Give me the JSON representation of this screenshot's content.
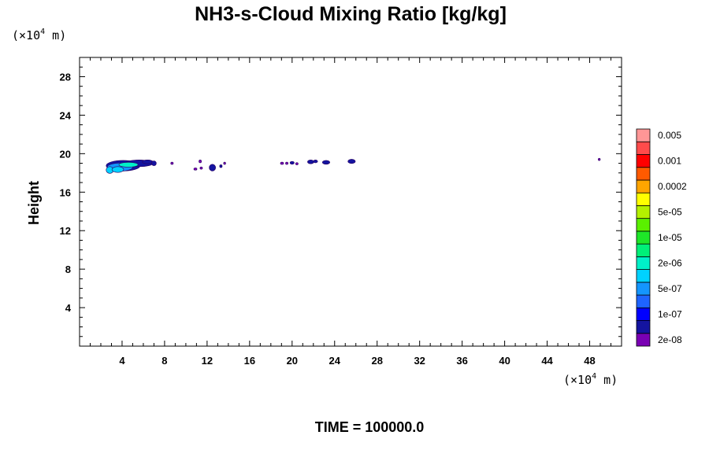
{
  "chart_data": {
    "type": "contour",
    "title": "NH3-s-Cloud Mixing Ratio [kg/kg]",
    "xlabel": "",
    "ylabel": "Height",
    "x_unit": {
      "pre": "(×10",
      "exp": "4",
      "post": " m)"
    },
    "y_unit": {
      "pre": "(×10",
      "exp": "4",
      "post": " m)"
    },
    "xlim": [
      0,
      51
    ],
    "ylim": [
      0,
      30
    ],
    "x_ticks": [
      4,
      8,
      12,
      16,
      20,
      24,
      28,
      32,
      36,
      40,
      44,
      48
    ],
    "y_ticks": [
      4,
      8,
      12,
      16,
      20,
      24,
      28
    ],
    "time_label": "TIME = 100000.0",
    "colorbar": {
      "colors": [
        "#7a00b4",
        "#1414a0",
        "#0000ff",
        "#1e64ff",
        "#1496ff",
        "#00d2ff",
        "#00f0c8",
        "#00f078",
        "#1ee628",
        "#5af000",
        "#b4f000",
        "#ffff00",
        "#ffa500",
        "#ff5a00",
        "#ff0000",
        "#ff4b4b",
        "#ff9696"
      ],
      "labels": [
        {
          "text": "2e-08",
          "boundary": 1
        },
        {
          "text": "1e-07",
          "boundary": 3
        },
        {
          "text": "5e-07",
          "boundary": 5
        },
        {
          "text": "2e-06",
          "boundary": 7
        },
        {
          "text": "1e-05",
          "boundary": 9
        },
        {
          "text": "5e-05",
          "boundary": 11
        },
        {
          "text": "0.0002",
          "boundary": 13
        },
        {
          "text": "0.001",
          "boundary": 15
        },
        {
          "text": "0.005",
          "boundary": 17
        }
      ]
    },
    "blobs": [
      {
        "cx": 4.1,
        "cy": 18.75,
        "rx": 1.6,
        "ry": 0.55,
        "color": "#1414a0"
      },
      {
        "cx": 5.6,
        "cy": 19.0,
        "rx": 1.3,
        "ry": 0.35,
        "color": "#1414a0"
      },
      {
        "cx": 3.8,
        "cy": 18.6,
        "rx": 1.2,
        "ry": 0.42,
        "color": "#1496ff"
      },
      {
        "cx": 4.6,
        "cy": 18.85,
        "rx": 0.9,
        "ry": 0.25,
        "color": "#00f0c8"
      },
      {
        "cx": 2.85,
        "cy": 18.3,
        "rx": 0.35,
        "ry": 0.35,
        "color": "#00d2ff"
      },
      {
        "cx": 3.6,
        "cy": 18.35,
        "rx": 0.55,
        "ry": 0.3,
        "color": "#00d2ff"
      },
      {
        "cx": 6.4,
        "cy": 19.15,
        "rx": 0.5,
        "ry": 0.2,
        "color": "#1414a0"
      },
      {
        "cx": 7.0,
        "cy": 19.0,
        "rx": 0.22,
        "ry": 0.25,
        "color": "#1414a0"
      },
      {
        "cx": 8.7,
        "cy": 19.0,
        "rx": 0.12,
        "ry": 0.12,
        "color": "#7a00b4"
      },
      {
        "cx": 10.9,
        "cy": 18.4,
        "rx": 0.15,
        "ry": 0.12,
        "color": "#7a00b4"
      },
      {
        "cx": 11.45,
        "cy": 18.5,
        "rx": 0.12,
        "ry": 0.12,
        "color": "#7a00b4"
      },
      {
        "cx": 11.35,
        "cy": 19.2,
        "rx": 0.12,
        "ry": 0.15,
        "color": "#7a00b4"
      },
      {
        "cx": 12.5,
        "cy": 18.55,
        "rx": 0.3,
        "ry": 0.35,
        "color": "#1414a0"
      },
      {
        "cx": 13.3,
        "cy": 18.7,
        "rx": 0.12,
        "ry": 0.15,
        "color": "#1414a0"
      },
      {
        "cx": 13.65,
        "cy": 19.0,
        "rx": 0.1,
        "ry": 0.12,
        "color": "#7a00b4"
      },
      {
        "cx": 19.05,
        "cy": 19.0,
        "rx": 0.15,
        "ry": 0.12,
        "color": "#7a00b4"
      },
      {
        "cx": 19.5,
        "cy": 19.0,
        "rx": 0.12,
        "ry": 0.12,
        "color": "#7a00b4"
      },
      {
        "cx": 20.0,
        "cy": 19.05,
        "rx": 0.2,
        "ry": 0.15,
        "color": "#1414a0"
      },
      {
        "cx": 20.45,
        "cy": 18.95,
        "rx": 0.12,
        "ry": 0.12,
        "color": "#7a00b4"
      },
      {
        "cx": 21.75,
        "cy": 19.15,
        "rx": 0.3,
        "ry": 0.2,
        "color": "#1414a0"
      },
      {
        "cx": 22.2,
        "cy": 19.2,
        "rx": 0.2,
        "ry": 0.15,
        "color": "#1414a0"
      },
      {
        "cx": 23.2,
        "cy": 19.1,
        "rx": 0.35,
        "ry": 0.2,
        "color": "#1414a0"
      },
      {
        "cx": 25.6,
        "cy": 19.2,
        "rx": 0.35,
        "ry": 0.22,
        "color": "#1414a0"
      },
      {
        "cx": 48.9,
        "cy": 19.4,
        "rx": 0.1,
        "ry": 0.12,
        "color": "#7a00b4"
      }
    ]
  }
}
